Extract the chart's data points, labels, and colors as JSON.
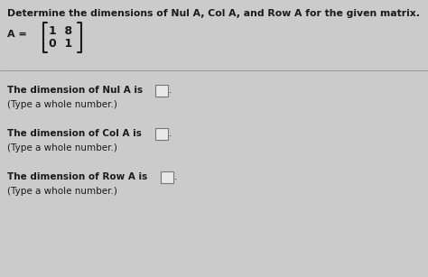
{
  "title": "Determine the dimensions of Nul A, Col A, and Row A for the given matrix.",
  "matrix_label": "A =",
  "matrix_row1": "1  8",
  "matrix_row2": "0  1",
  "line1_text": "The dimension of Nul A is",
  "line1_sub": "(Type a whole number.)",
  "line2_text": "The dimension of Col A is",
  "line2_sub": "(Type a whole number.)",
  "line3_text": "The dimension of Row A is",
  "line3_sub": "(Type a whole number.)",
  "bg_color": "#cbcbcb",
  "text_color": "#1a1a1a",
  "box_color": "#e8e8e8",
  "box_edge_color": "#777777",
  "divider_color": "#999999",
  "title_fontsize": 7.8,
  "body_fontsize": 7.5,
  "sub_fontsize": 7.5
}
